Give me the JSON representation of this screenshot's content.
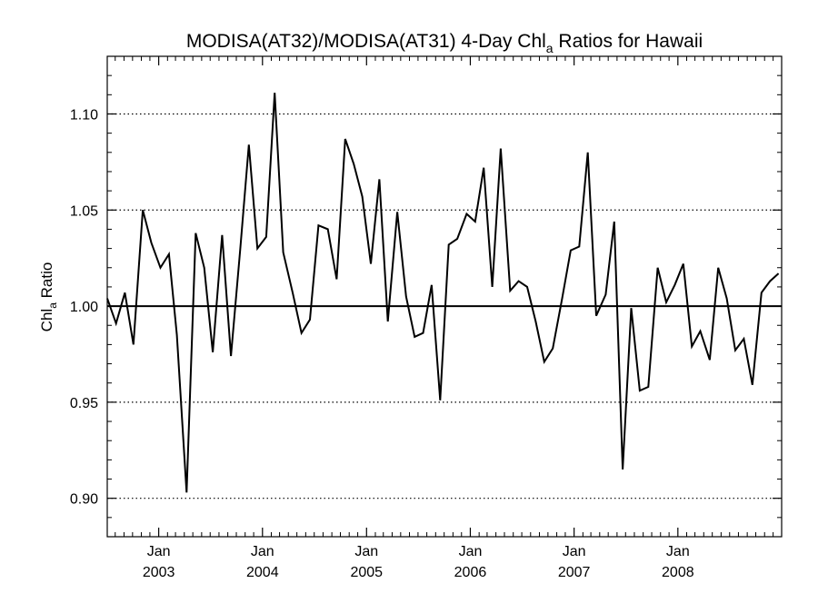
{
  "chart_data": {
    "type": "line",
    "title": {
      "text": "MODISA(AT32)/MODISA(AT31) 4-Day Chl",
      "sub": "a",
      "tail": " Ratios for Hawaii"
    },
    "ylabel": {
      "text": "Chl",
      "sub": "a",
      "tail": " Ratio"
    },
    "xlabel": "",
    "ylim": [
      0.88,
      1.13
    ],
    "xlim": [
      "2002-07-04",
      "2008-12-31"
    ],
    "y_ticks": [
      "0.90",
      "0.95",
      "1.00",
      "1.05",
      "1.10"
    ],
    "x_ticks": [
      {
        "date": "2003-01-01",
        "month": "Jan",
        "year": "2003"
      },
      {
        "date": "2004-01-01",
        "month": "Jan",
        "year": "2004"
      },
      {
        "date": "2005-01-01",
        "month": "Jan",
        "year": "2005"
      },
      {
        "date": "2006-01-01",
        "month": "Jan",
        "year": "2006"
      },
      {
        "date": "2007-01-01",
        "month": "Jan",
        "year": "2007"
      },
      {
        "date": "2008-01-01",
        "month": "Jan",
        "year": "2008"
      }
    ],
    "grid": "horizontal dotted at major y ticks",
    "reference_line": 1.0,
    "series": [
      {
        "x": [
          "2002-07-04",
          "2002-08-04",
          "2002-09-04",
          "2002-10-04",
          "2002-11-06",
          "2002-12-06",
          "2003-01-07",
          "2003-02-06",
          "2003-03-06",
          "2003-04-09",
          "2003-05-11",
          "2003-06-10",
          "2003-07-10",
          "2003-08-12",
          "2003-09-12",
          "2003-10-15",
          "2003-11-14",
          "2003-12-14",
          "2004-01-14",
          "2004-02-13",
          "2004-03-14",
          "2004-04-16",
          "2004-05-17",
          "2004-06-16",
          "2004-07-16",
          "2004-08-18",
          "2004-09-18",
          "2004-10-18",
          "2004-11-17",
          "2004-12-17",
          "2005-01-16",
          "2005-02-15",
          "2005-03-17",
          "2005-04-19",
          "2005-05-20",
          "2005-06-19",
          "2005-07-19",
          "2005-08-18",
          "2005-09-17",
          "2005-10-17",
          "2005-11-16",
          "2005-12-19",
          "2006-01-18",
          "2006-02-17",
          "2006-03-19",
          "2006-04-18",
          "2006-05-21",
          "2006-06-20",
          "2006-07-20",
          "2006-08-19",
          "2006-09-18",
          "2006-10-18",
          "2006-11-20",
          "2006-12-20",
          "2007-01-19",
          "2007-02-18",
          "2007-03-20",
          "2007-04-22",
          "2007-05-22",
          "2007-06-21",
          "2007-07-21",
          "2007-08-20",
          "2007-09-19",
          "2007-10-22",
          "2007-11-21",
          "2007-12-21",
          "2008-01-20",
          "2008-02-19",
          "2008-03-20",
          "2008-04-22",
          "2008-05-22",
          "2008-06-21",
          "2008-07-21",
          "2008-08-20",
          "2008-09-19",
          "2008-10-21",
          "2008-11-20",
          "2008-12-20"
        ],
        "y": [
          1.004,
          0.991,
          1.007,
          0.98,
          1.05,
          1.033,
          1.02,
          1.027,
          0.985,
          0.903,
          1.038,
          1.02,
          0.976,
          1.037,
          0.974,
          1.03,
          1.084,
          1.03,
          1.036,
          1.111,
          1.028,
          1.007,
          0.986,
          0.993,
          1.042,
          1.04,
          1.014,
          1.087,
          1.074,
          1.057,
          1.022,
          1.066,
          0.992,
          1.049,
          1.005,
          0.984,
          0.986,
          1.011,
          0.951,
          1.032,
          1.035,
          1.048,
          1.044,
          1.072,
          1.01,
          1.082,
          1.008,
          1.013,
          1.01,
          0.992,
          0.971,
          0.978,
          1.004,
          1.029,
          1.031,
          1.08,
          0.995,
          1.006,
          1.044,
          0.915,
          0.999,
          0.956,
          0.958,
          1.02,
          1.002,
          1.011,
          1.022,
          0.979,
          0.987,
          0.972,
          1.02,
          1.004,
          0.977,
          0.983,
          0.959,
          1.007,
          1.013,
          1.017
        ]
      }
    ]
  }
}
